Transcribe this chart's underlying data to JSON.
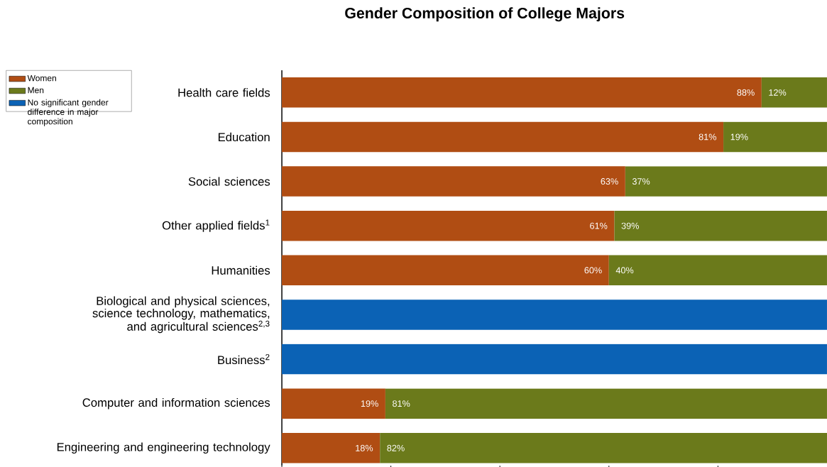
{
  "chart_data": {
    "type": "bar",
    "title": "Gender Composition of College Majors",
    "orientation": "horizontal",
    "stacked": true,
    "legend": "top left",
    "tick_labels": "y",
    "categories": [
      "Health care fields",
      "Education",
      "Social sciences",
      "Other applied fields$^{1}$",
      "Humanities",
      "Biological and physical sciences, science technology, mathematics, and agricultural sciences$^{2,3}$",
      "Business$^{2}$",
      "Computer and information sciences",
      "Engineering and engineering technology"
    ],
    "xlim": [
      0,
      100
    ],
    "xticks": [
      {
        "value": 0,
        "label": null
      },
      {
        "value": 20,
        "label": null
      },
      {
        "value": 40,
        "label": null
      },
      {
        "value": 60,
        "label": null
      },
      {
        "value": 80,
        "label": null
      }
    ],
    "series": [
      {
        "name": "Women",
        "color": "#b04d13",
        "values": [
          88,
          81,
          63,
          61,
          60,
          null,
          null,
          19,
          18
        ],
        "value_labels": [
          "88%",
          "81%",
          "63%",
          "61%",
          "60%",
          null,
          null,
          "19%",
          "18%"
        ]
      },
      {
        "name": "Men",
        "color": "#6b7a1b",
        "values": [
          12,
          19,
          37,
          39,
          40,
          null,
          null,
          81,
          82
        ],
        "value_labels": [
          "12%",
          "19%",
          "37%",
          "39%",
          "40%",
          null,
          null,
          "81%",
          "82%"
        ]
      },
      {
        "name": "No significant gender difference in major composition",
        "color": "#0b62b5",
        "values": [
          null,
          null,
          null,
          null,
          null,
          100,
          100,
          null,
          null
        ]
      }
    ]
  }
}
